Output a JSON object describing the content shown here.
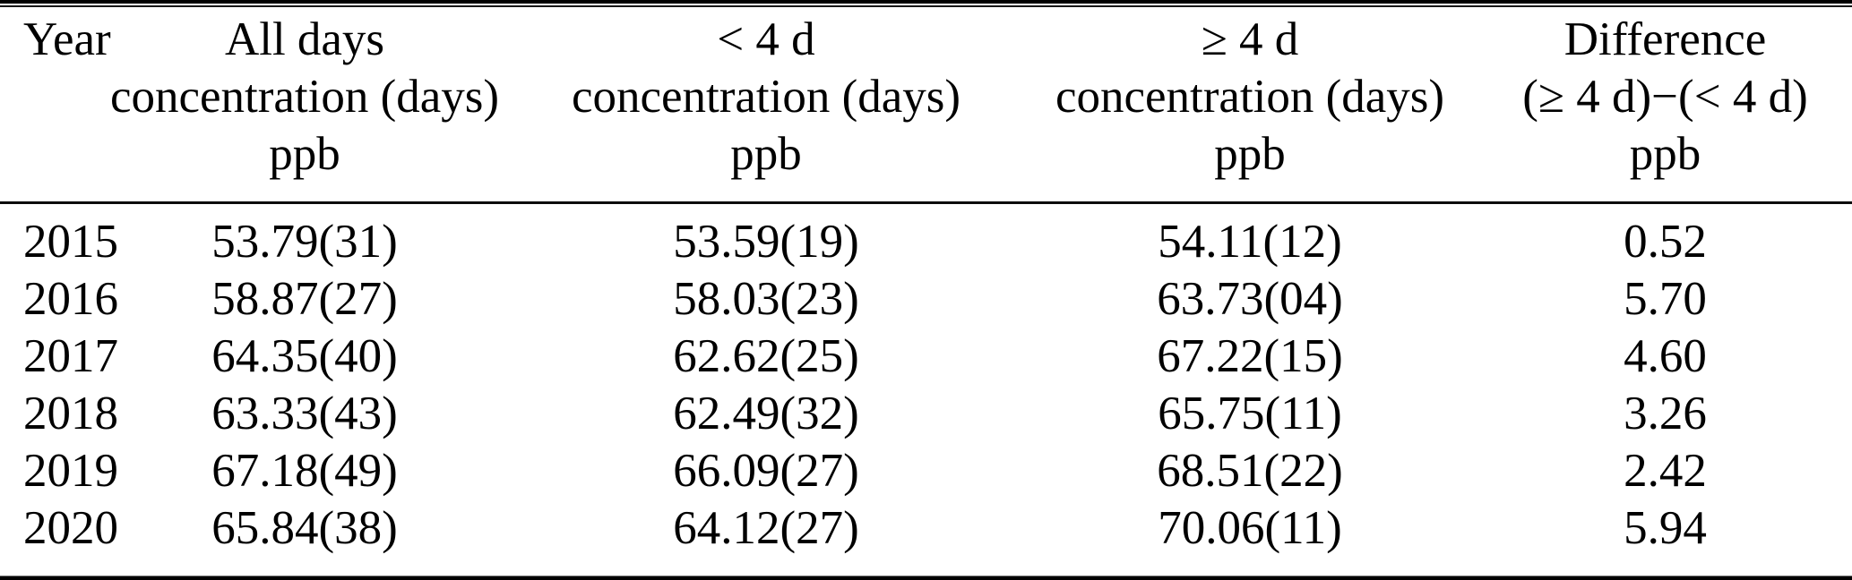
{
  "table": {
    "unit": "ppb",
    "columns": [
      {
        "id": "year",
        "lines": [
          "Year",
          "",
          ""
        ]
      },
      {
        "id": "all_days",
        "lines": [
          "All days",
          "concentration (days)",
          "ppb"
        ]
      },
      {
        "id": "lt4d",
        "lines": [
          "< 4 d",
          "concentration (days)",
          "ppb"
        ]
      },
      {
        "id": "ge4d",
        "lines": [
          "≥ 4 d",
          "concentration (days)",
          "ppb"
        ]
      },
      {
        "id": "difference",
        "lines": [
          "Difference",
          "(≥ 4 d)−(< 4 d)",
          "ppb"
        ]
      }
    ],
    "rows": [
      {
        "year": "2015",
        "all_days": "53.79(31)",
        "lt4d": "53.59(19)",
        "ge4d": "54.11(12)",
        "difference": "0.52"
      },
      {
        "year": "2016",
        "all_days": "58.87(27)",
        "lt4d": "58.03(23)",
        "ge4d": "63.73(04)",
        "difference": "5.70"
      },
      {
        "year": "2017",
        "all_days": "64.35(40)",
        "lt4d": "62.62(25)",
        "ge4d": "67.22(15)",
        "difference": "4.60"
      },
      {
        "year": "2018",
        "all_days": "63.33(43)",
        "lt4d": "62.49(32)",
        "ge4d": "65.75(11)",
        "difference": "3.26"
      },
      {
        "year": "2019",
        "all_days": "67.18(49)",
        "lt4d": "66.09(27)",
        "ge4d": "68.51(22)",
        "difference": "2.42"
      },
      {
        "year": "2020",
        "all_days": "65.84(38)",
        "lt4d": "64.12(27)",
        "ge4d": "70.06(11)",
        "difference": "5.94"
      }
    ]
  }
}
